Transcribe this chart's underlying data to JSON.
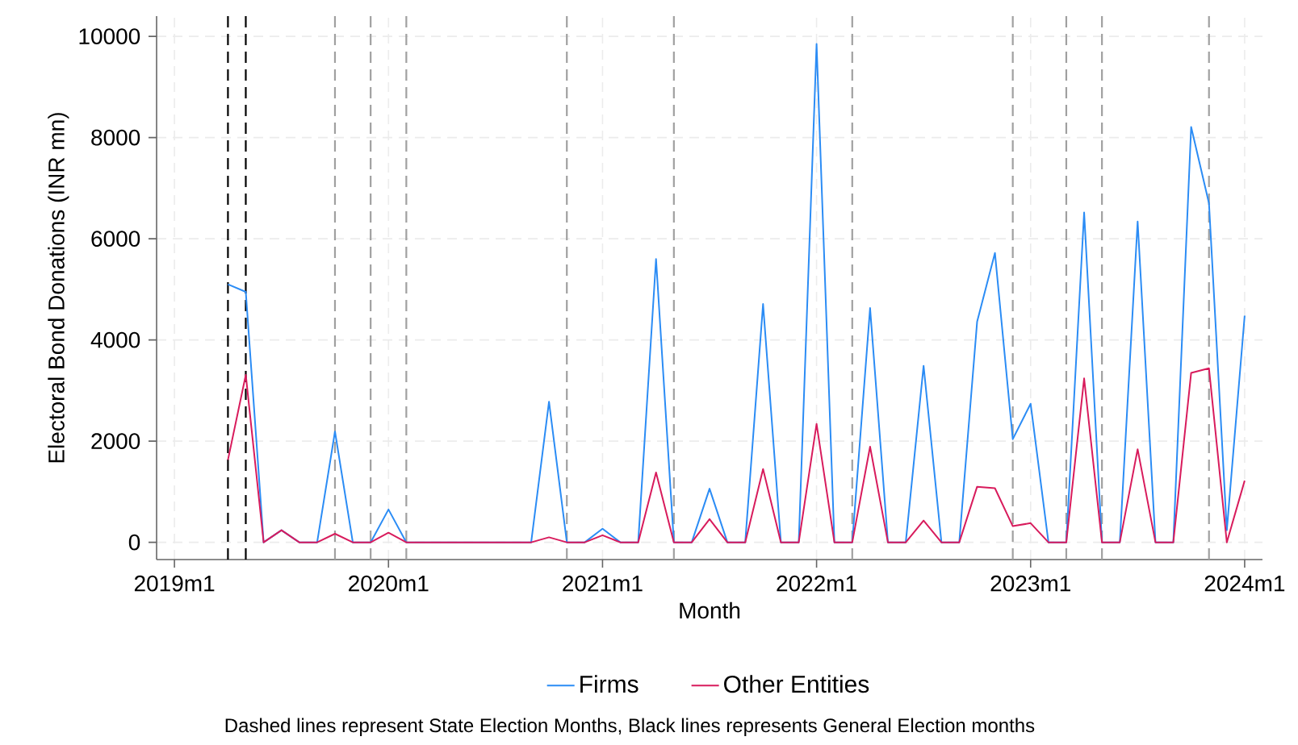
{
  "chart_data": {
    "type": "line",
    "xlabel": "Month",
    "ylabel": "Electoral Bond Donations (INR mn)",
    "x": [
      "2019-04",
      "2019-05",
      "2019-06",
      "2019-07",
      "2019-08",
      "2019-09",
      "2019-10",
      "2019-11",
      "2019-12",
      "2020-01",
      "2020-02",
      "2020-03",
      "2020-04",
      "2020-05",
      "2020-06",
      "2020-07",
      "2020-08",
      "2020-09",
      "2020-10",
      "2020-11",
      "2020-12",
      "2021-01",
      "2021-02",
      "2021-03",
      "2021-04",
      "2021-05",
      "2021-06",
      "2021-07",
      "2021-08",
      "2021-09",
      "2021-10",
      "2021-11",
      "2021-12",
      "2022-01",
      "2022-02",
      "2022-03",
      "2022-04",
      "2022-05",
      "2022-06",
      "2022-07",
      "2022-08",
      "2022-09",
      "2022-10",
      "2022-11",
      "2022-12",
      "2023-01",
      "2023-02",
      "2023-03",
      "2023-04",
      "2023-05",
      "2023-06",
      "2023-07",
      "2023-08",
      "2023-09",
      "2023-10",
      "2023-11",
      "2023-12",
      "2024-01"
    ],
    "series": [
      {
        "name": "Firms",
        "color": "#2b8cf5",
        "values": [
          5100,
          4950,
          0,
          240,
          0,
          0,
          2190,
          0,
          0,
          650,
          0,
          0,
          0,
          0,
          0,
          0,
          0,
          0,
          2780,
          0,
          0,
          270,
          0,
          0,
          5600,
          0,
          0,
          1060,
          0,
          0,
          4710,
          0,
          0,
          9850,
          0,
          0,
          4630,
          0,
          0,
          3490,
          0,
          0,
          4360,
          5720,
          2040,
          2740,
          0,
          0,
          6520,
          0,
          0,
          6340,
          0,
          0,
          8210,
          6700,
          240,
          4480
        ]
      },
      {
        "name": "Other Entities",
        "color": "#d81b5c",
        "values": [
          1630,
          3310,
          0,
          240,
          0,
          0,
          170,
          0,
          0,
          190,
          0,
          0,
          0,
          0,
          0,
          0,
          0,
          0,
          100,
          0,
          0,
          140,
          0,
          0,
          1380,
          0,
          0,
          460,
          0,
          0,
          1450,
          0,
          0,
          2340,
          0,
          0,
          1890,
          0,
          0,
          430,
          0,
          0,
          1100,
          1070,
          320,
          380,
          0,
          0,
          3240,
          0,
          0,
          1840,
          0,
          0,
          3350,
          3440,
          0,
          1220
        ]
      }
    ],
    "xlim": [
      "2018-12",
      "2024-02"
    ],
    "xticks": [
      {
        "value": "2019-01",
        "label": "2019m1"
      },
      {
        "value": "2020-01",
        "label": "2020m1"
      },
      {
        "value": "2021-01",
        "label": "2021m1"
      },
      {
        "value": "2022-01",
        "label": "2022m1"
      },
      {
        "value": "2023-01",
        "label": "2023m1"
      },
      {
        "value": "2024-01",
        "label": "2024m1"
      }
    ],
    "ylim": [
      -340,
      10400
    ],
    "yticks": [
      0,
      2000,
      4000,
      6000,
      8000,
      10000
    ],
    "grid": true,
    "legend": "bottom",
    "ref_lines": [
      {
        "axis": "x",
        "value": "2019-04",
        "color": "#000000",
        "line_style": "dashed"
      },
      {
        "axis": "x",
        "value": "2019-05",
        "color": "#000000",
        "line_style": "dashed"
      },
      {
        "axis": "x",
        "value": "2019-10",
        "color": "#a0a0a0",
        "line_style": "dashed"
      },
      {
        "axis": "x",
        "value": "2019-12",
        "color": "#a0a0a0",
        "line_style": "dashed"
      },
      {
        "axis": "x",
        "value": "2020-02",
        "color": "#a0a0a0",
        "line_style": "dashed"
      },
      {
        "axis": "x",
        "value": "2020-11",
        "color": "#a0a0a0",
        "line_style": "dashed"
      },
      {
        "axis": "x",
        "value": "2021-05",
        "color": "#a0a0a0",
        "line_style": "dashed"
      },
      {
        "axis": "x",
        "value": "2022-03",
        "color": "#a0a0a0",
        "line_style": "dashed"
      },
      {
        "axis": "x",
        "value": "2022-12",
        "color": "#a0a0a0",
        "line_style": "dashed"
      },
      {
        "axis": "x",
        "value": "2023-03",
        "color": "#a0a0a0",
        "line_style": "dashed"
      },
      {
        "axis": "x",
        "value": "2023-05",
        "color": "#a0a0a0",
        "line_style": "dashed"
      },
      {
        "axis": "x",
        "value": "2023-11",
        "color": "#a0a0a0",
        "line_style": "dashed"
      }
    ],
    "annotations": [
      "Dashed lines represent State Election Months,  Black lines represents General Election months"
    ]
  }
}
